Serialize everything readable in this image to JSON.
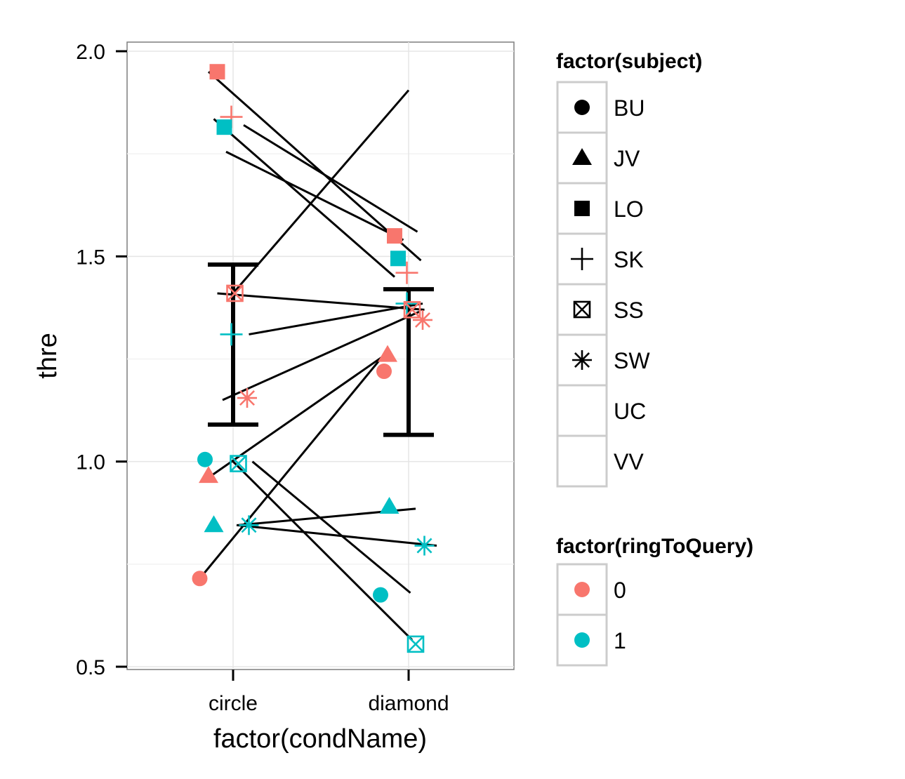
{
  "chart_data": {
    "type": "scatter",
    "xlabel": "factor(condName)",
    "ylabel": "thre",
    "categories": [
      "circle",
      "diamond"
    ],
    "ylim": [
      0.48,
      2.02
    ],
    "yticks": [
      0.5,
      1.0,
      1.5,
      2.0
    ],
    "ytick_labels": [
      "0.5",
      "1.0",
      "1.5",
      "2.0"
    ],
    "grid": true,
    "legends": [
      {
        "title": "factor(subject)",
        "position": "right",
        "entries": [
          {
            "label": "BU",
            "shape": "circle"
          },
          {
            "label": "JV",
            "shape": "triangle"
          },
          {
            "label": "LO",
            "shape": "square"
          },
          {
            "label": "SK",
            "shape": "plus"
          },
          {
            "label": "SS",
            "shape": "boxcross"
          },
          {
            "label": "SW",
            "shape": "asterisk"
          },
          {
            "label": "UC",
            "shape": "none"
          },
          {
            "label": "VV",
            "shape": "none"
          }
        ]
      },
      {
        "title": "factor(ringToQuery)",
        "position": "right",
        "entries": [
          {
            "label": "0",
            "color": "#F8766D"
          },
          {
            "label": "1",
            "color": "#00BFC4"
          }
        ]
      }
    ],
    "points": [
      {
        "x": 0.91,
        "y": 1.95,
        "subject": "LO",
        "ring": "0"
      },
      {
        "x": 0.99,
        "y": 1.84,
        "subject": "SK",
        "ring": "0"
      },
      {
        "x": 0.95,
        "y": 1.815,
        "subject": "LO",
        "ring": "1"
      },
      {
        "x": 1.01,
        "y": 1.41,
        "subject": "SS",
        "ring": "0"
      },
      {
        "x": 0.99,
        "y": 1.31,
        "subject": "SK",
        "ring": "1"
      },
      {
        "x": 1.08,
        "y": 1.155,
        "subject": "SW",
        "ring": "0"
      },
      {
        "x": 0.84,
        "y": 1.005,
        "subject": "BU",
        "ring": "1"
      },
      {
        "x": 1.03,
        "y": 0.995,
        "subject": "SS",
        "ring": "1"
      },
      {
        "x": 0.86,
        "y": 0.965,
        "subject": "JV",
        "ring": "0"
      },
      {
        "x": 0.89,
        "y": 0.845,
        "subject": "JV",
        "ring": "1"
      },
      {
        "x": 1.09,
        "y": 0.845,
        "subject": "SW",
        "ring": "1"
      },
      {
        "x": 0.81,
        "y": 0.715,
        "subject": "BU",
        "ring": "0"
      },
      {
        "x": 1.92,
        "y": 1.55,
        "subject": "LO",
        "ring": "0"
      },
      {
        "x": 1.94,
        "y": 1.495,
        "subject": "LO",
        "ring": "1"
      },
      {
        "x": 1.99,
        "y": 1.46,
        "subject": "SK",
        "ring": "0"
      },
      {
        "x": 1.99,
        "y": 1.385,
        "subject": "SK",
        "ring": "1"
      },
      {
        "x": 2.02,
        "y": 1.37,
        "subject": "SS",
        "ring": "0"
      },
      {
        "x": 2.08,
        "y": 1.345,
        "subject": "SW",
        "ring": "0"
      },
      {
        "x": 1.88,
        "y": 1.26,
        "subject": "JV",
        "ring": "0"
      },
      {
        "x": 1.86,
        "y": 1.22,
        "subject": "BU",
        "ring": "0"
      },
      {
        "x": 1.89,
        "y": 0.89,
        "subject": "JV",
        "ring": "1"
      },
      {
        "x": 2.09,
        "y": 0.795,
        "subject": "SW",
        "ring": "1"
      },
      {
        "x": 1.84,
        "y": 0.675,
        "subject": "BU",
        "ring": "1"
      },
      {
        "x": 2.04,
        "y": 0.555,
        "subject": "SS",
        "ring": "1"
      }
    ],
    "lines": [
      {
        "x1": 0.86,
        "y1": 1.95,
        "x2": 2.07,
        "y2": 1.49
      },
      {
        "x1": 1.06,
        "y1": 1.82,
        "x2": 2.05,
        "y2": 1.56
      },
      {
        "x1": 0.89,
        "y1": 1.835,
        "x2": 1.92,
        "y2": 1.45
      },
      {
        "x1": 0.96,
        "y1": 1.755,
        "x2": 1.97,
        "y2": 1.54
      },
      {
        "x1": 1.01,
        "y1": 1.415,
        "x2": 2.0,
        "y2": 1.905
      },
      {
        "x1": 0.91,
        "y1": 1.41,
        "x2": 2.09,
        "y2": 1.37
      },
      {
        "x1": 1.09,
        "y1": 1.31,
        "x2": 2.08,
        "y2": 1.385
      },
      {
        "x1": 0.94,
        "y1": 1.15,
        "x2": 2.06,
        "y2": 1.365
      },
      {
        "x1": 0.84,
        "y1": 0.955,
        "x2": 1.85,
        "y2": 1.255
      },
      {
        "x1": 0.82,
        "y1": 0.72,
        "x2": 1.83,
        "y2": 1.245
      },
      {
        "x1": 1.0,
        "y1": 1.0,
        "x2": 2.02,
        "y2": 0.565
      },
      {
        "x1": 1.11,
        "y1": 1.0,
        "x2": 2.01,
        "y2": 0.68
      },
      {
        "x1": 1.03,
        "y1": 0.845,
        "x2": 2.04,
        "y2": 0.885
      },
      {
        "x1": 1.02,
        "y1": 0.845,
        "x2": 2.16,
        "y2": 0.795
      }
    ],
    "errorbars": [
      {
        "category": "circle",
        "ymin": 1.09,
        "ymax": 1.48
      },
      {
        "category": "diamond",
        "ymin": 1.065,
        "ymax": 1.42
      }
    ]
  }
}
